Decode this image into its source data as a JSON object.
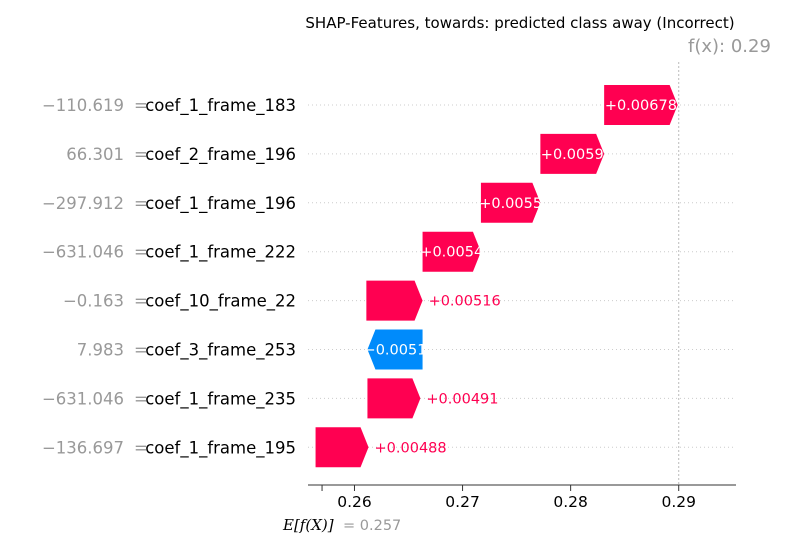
{
  "chart_data": {
    "type": "waterfall",
    "title": "SHAP-Features, towards: predicted class away (Incorrect)",
    "fx_label": "f(x): 0.29",
    "efx_label": "E[f(X)]",
    "efx_value": "= 0.257",
    "base_value": 0.257,
    "fx_value": 0.29,
    "xlim": [
      0.2557,
      0.2953
    ],
    "xticks": [
      0.26,
      0.27,
      0.28,
      0.29
    ],
    "xtick_labels": [
      "0.26",
      "0.27",
      "0.28",
      "0.29"
    ],
    "features": [
      {
        "value_text": "−110.619",
        "name": "coef_1_frame_183",
        "shap": 0.00678,
        "label": "+0.00678",
        "start": 0.2831,
        "end": 0.2899
      },
      {
        "value_text": "66.301",
        "name": "coef_2_frame_196",
        "shap": 0.0059,
        "label": "+0.0059",
        "start": 0.2772,
        "end": 0.2831
      },
      {
        "value_text": "−297.912",
        "name": "coef_1_frame_196",
        "shap": 0.0055,
        "label": "+0.0055",
        "start": 0.2717,
        "end": 0.2772
      },
      {
        "value_text": "−631.046",
        "name": "coef_1_frame_222",
        "shap": 0.0054,
        "label": "+0.0054",
        "start": 0.2663,
        "end": 0.2717
      },
      {
        "value_text": "−0.163",
        "name": "coef_10_frame_22",
        "shap": 0.00516,
        "label": "+0.00516",
        "start": 0.2611,
        "end": 0.2663
      },
      {
        "value_text": "7.983",
        "name": "coef_3_frame_253",
        "shap": -0.0051,
        "label": "−0.0051",
        "start": 0.2663,
        "end": 0.2612
      },
      {
        "value_text": "−631.046",
        "name": "coef_1_frame_235",
        "shap": 0.00491,
        "label": "+0.00491",
        "start": 0.2612,
        "end": 0.2661
      },
      {
        "value_text": "−136.697",
        "name": "coef_1_frame_195",
        "shap": 0.00488,
        "label": "+0.00488",
        "start": 0.2564,
        "end": 0.2613
      }
    ],
    "colors": {
      "positive": "#ff0051",
      "negative": "#008bfb",
      "label_positive_outside": "#ff0051",
      "label_negative_outside": "#008bfb"
    },
    "grid": "dotted horizontal row lines"
  }
}
